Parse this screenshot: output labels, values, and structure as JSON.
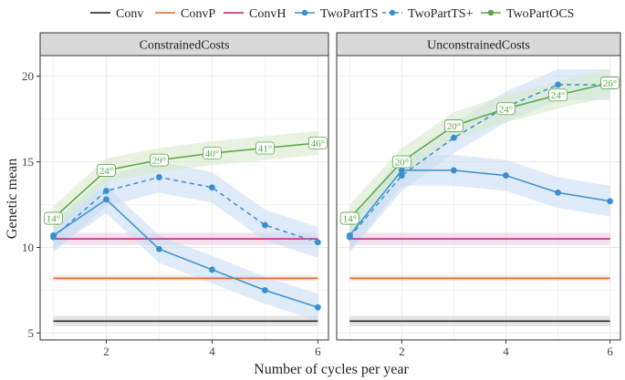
{
  "chart_data": {
    "type": "line",
    "ylabel": "Genetic mean",
    "xlabel": "Number of cycles per year",
    "x_ticks": [
      2,
      4,
      6
    ],
    "y_ticks": [
      5,
      10,
      15,
      20
    ],
    "xlim": [
      0.75,
      6.2
    ],
    "ylim": [
      4.6,
      21.2
    ],
    "grid": true,
    "legend_position": "top",
    "legend": [
      {
        "name": "Conv",
        "color": "#1a1a1a",
        "dashed": false,
        "marker": false
      },
      {
        "name": "ConvP",
        "color": "#e8622c",
        "dashed": false,
        "marker": false
      },
      {
        "name": "ConvH",
        "color": "#c2177c",
        "dashed": false,
        "marker": false
      },
      {
        "name": "TwoPartTS",
        "color": "#3b8fd0",
        "dashed": false,
        "marker": true
      },
      {
        "name": "TwoPartTS+",
        "color": "#3b8fd0",
        "dashed": true,
        "marker": true
      },
      {
        "name": "TwoPartOCS",
        "color": "#5aa645",
        "dashed": false,
        "marker": true
      }
    ],
    "panels": [
      {
        "strip": "ConstrainedCosts",
        "series": [
          {
            "name": "Conv",
            "x": [
              1,
              6
            ],
            "y": [
              5.7,
              5.7
            ],
            "band": 0.3,
            "band_color": "#d3d3d3"
          },
          {
            "name": "ConvP",
            "x": [
              1,
              6
            ],
            "y": [
              8.2,
              8.2
            ],
            "band": 0.15,
            "band_color": "#f9d2c0"
          },
          {
            "name": "ConvH",
            "x": [
              1,
              6
            ],
            "y": [
              10.5,
              10.5
            ],
            "band": 0.35,
            "band_color": "#f1c9dd"
          },
          {
            "name": "TwoPartTS",
            "x": [
              1,
              2,
              3,
              4,
              5,
              6
            ],
            "y": [
              10.7,
              12.8,
              9.9,
              8.7,
              7.5,
              6.5
            ],
            "band": 0.8,
            "band_color": "#c9def3"
          },
          {
            "name": "TwoPartTS+",
            "x": [
              1,
              2,
              3,
              4,
              5,
              6
            ],
            "y": [
              10.6,
              13.3,
              14.1,
              13.5,
              11.3,
              10.3
            ],
            "band": 0.9,
            "band_color": "#c9def3"
          },
          {
            "name": "TwoPartOCS",
            "x": [
              1,
              2,
              3,
              4,
              5,
              6
            ],
            "y": [
              11.7,
              14.5,
              15.1,
              15.5,
              15.8,
              16.1
            ],
            "band": 0.7,
            "band_color": "#d7ebcb"
          }
        ],
        "annotations": [
          {
            "x": 1,
            "y": 11.7,
            "label": "14°"
          },
          {
            "x": 2,
            "y": 14.5,
            "label": "24°"
          },
          {
            "x": 3,
            "y": 15.1,
            "label": "29°"
          },
          {
            "x": 4,
            "y": 15.5,
            "label": "40°"
          },
          {
            "x": 5,
            "y": 15.8,
            "label": "41°"
          },
          {
            "x": 6,
            "y": 16.1,
            "label": "46°"
          }
        ]
      },
      {
        "strip": "UnconstrainedCosts",
        "series": [
          {
            "name": "Conv",
            "x": [
              1,
              6
            ],
            "y": [
              5.7,
              5.7
            ],
            "band": 0.3,
            "band_color": "#d3d3d3"
          },
          {
            "name": "ConvP",
            "x": [
              1,
              6
            ],
            "y": [
              8.2,
              8.2
            ],
            "band": 0.15,
            "band_color": "#f9d2c0"
          },
          {
            "name": "ConvH",
            "x": [
              1,
              6
            ],
            "y": [
              10.5,
              10.5
            ],
            "band": 0.35,
            "band_color": "#f1c9dd"
          },
          {
            "name": "TwoPartTS",
            "x": [
              1,
              2,
              3,
              4,
              5,
              6
            ],
            "y": [
              10.7,
              14.5,
              14.5,
              14.2,
              13.2,
              12.7
            ],
            "band": 0.9,
            "band_color": "#c9def3"
          },
          {
            "name": "TwoPartTS+",
            "x": [
              1,
              2,
              3,
              4,
              5,
              6
            ],
            "y": [
              10.6,
              14.2,
              16.4,
              18.2,
              19.5,
              19.5
            ],
            "band": 0.9,
            "band_color": "#c9def3"
          },
          {
            "name": "TwoPartOCS",
            "x": [
              1,
              2,
              3,
              4,
              5,
              6
            ],
            "y": [
              11.7,
              15.0,
              17.1,
              18.1,
              18.9,
              19.6
            ],
            "band": 0.8,
            "band_color": "#d7ebcb"
          }
        ],
        "annotations": [
          {
            "x": 1,
            "y": 11.7,
            "label": "14°"
          },
          {
            "x": 2,
            "y": 15.0,
            "label": "20°"
          },
          {
            "x": 3,
            "y": 17.1,
            "label": "20°"
          },
          {
            "x": 4,
            "y": 18.1,
            "label": "24°"
          },
          {
            "x": 5,
            "y": 18.9,
            "label": "24°"
          },
          {
            "x": 6,
            "y": 19.6,
            "label": "26°"
          }
        ]
      }
    ]
  }
}
